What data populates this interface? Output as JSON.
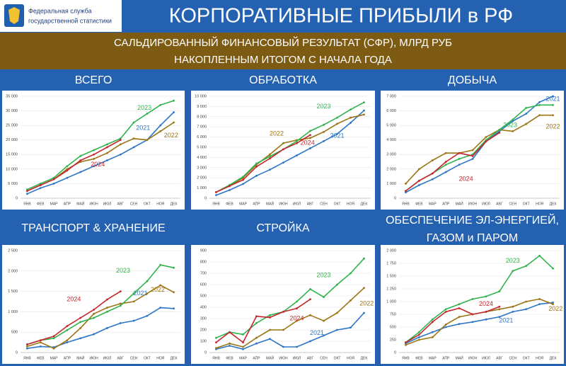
{
  "header": {
    "logo_lines": [
      "Федеральная служба",
      "государственной статистики"
    ],
    "title": "КОРПОРАТИВНЫЕ ПРИБЫЛИ в РФ",
    "subtitle_lines": [
      "САЛЬДИРОВАННЫЙ ФИНАНСОВЫЙ РЕЗУЛЬТАТ (СФР), МЛРД РУБ",
      "НАКОПЛЕННЫМ ИТОГОМ С НАЧАЛА ГОДА"
    ]
  },
  "chart_data": [
    {
      "type": "line",
      "title": "ВСЕГО",
      "grid": true,
      "categories": [
        "ЯНВ",
        "ФЕВ",
        "МАР",
        "АПР",
        "МАЙ",
        "ИЮН",
        "ИЮЛ",
        "АВГ",
        "СЕН",
        "ОКТ",
        "НОЯ",
        "ДЕК"
      ],
      "ylim": [
        0,
        35000
      ],
      "yticks": [
        0,
        {
          "value": 5000,
          "label": "5 000"
        },
        {
          "value": 10000,
          "label": "10 000"
        },
        {
          "value": 15000,
          "label": "15 000"
        },
        {
          "value": 20000,
          "label": "20 000"
        },
        {
          "value": 25000,
          "label": "25 000"
        },
        {
          "value": 30000,
          "label": "30 000"
        },
        {
          "value": 35000,
          "label": "35 000"
        }
      ],
      "series": [
        {
          "name": "2021",
          "color": "#2e75c6",
          "values": [
            1500,
            3500,
            5000,
            7000,
            9000,
            11000,
            13000,
            15000,
            17500,
            20000,
            25000,
            29500
          ]
        },
        {
          "name": "2022",
          "color": "#9c7414",
          "values": [
            2500,
            4500,
            6500,
            10000,
            12500,
            13500,
            15500,
            18500,
            20500,
            20000,
            23000,
            26000
          ]
        },
        {
          "name": "2023",
          "color": "#2fb34c",
          "values": [
            3000,
            5000,
            7000,
            11000,
            14500,
            16500,
            18500,
            20500,
            26000,
            29000,
            32000,
            33500
          ]
        },
        {
          "name": "2024",
          "color": "#c4262e",
          "values": [
            2500,
            4500,
            6500,
            9500,
            13000,
            15000,
            17500,
            20000,
            null,
            null,
            null,
            null
          ]
        }
      ]
    },
    {
      "type": "line",
      "title": "ОБРАБОТКА",
      "grid": true,
      "categories": [
        "ЯНВ",
        "ФЕВ",
        "МАР",
        "АПР",
        "МАЙ",
        "ИЮН",
        "ИЮЛ",
        "АВГ",
        "СЕН",
        "ОКТ",
        "НОЯ",
        "ДЕК"
      ],
      "ylim": [
        0,
        10000
      ],
      "yticks": [
        0,
        {
          "value": 1000,
          "label": "1 000"
        },
        {
          "value": 2000,
          "label": "2 000"
        },
        {
          "value": 3000,
          "label": "3 000"
        },
        {
          "value": 4000,
          "label": "4 000"
        },
        {
          "value": 5000,
          "label": "5 000"
        },
        {
          "value": 6000,
          "label": "6 000"
        },
        {
          "value": 7000,
          "label": "7 000"
        },
        {
          "value": 8000,
          "label": "8 000"
        },
        {
          "value": 9000,
          "label": "9 000"
        },
        {
          "value": 10000,
          "label": "10 000"
        }
      ],
      "series": [
        {
          "name": "2021",
          "color": "#2e75c6",
          "values": [
            300,
            800,
            1400,
            2200,
            2800,
            3500,
            4200,
            4900,
            5600,
            6300,
            7400,
            8600
          ]
        },
        {
          "name": "2022",
          "color": "#9c7414",
          "values": [
            600,
            1200,
            2000,
            3300,
            4300,
            5400,
            5700,
            5900,
            6500,
            7300,
            7900,
            8200
          ]
        },
        {
          "name": "2023",
          "color": "#2fb34c",
          "values": [
            600,
            1300,
            2100,
            3400,
            4100,
            4800,
            5600,
            6600,
            7200,
            7900,
            8700,
            9400
          ]
        },
        {
          "name": "2024",
          "color": "#c4262e",
          "values": [
            600,
            1200,
            1800,
            3100,
            3900,
            4800,
            5400,
            6200,
            null,
            null,
            null,
            null
          ]
        }
      ]
    },
    {
      "type": "line",
      "title": "ДОБЫЧА",
      "grid": true,
      "categories": [
        "ЯНВ",
        "ФЕВ",
        "МАР",
        "АПР",
        "МАЙ",
        "ИЮН",
        "ИЮЛ",
        "АВГ",
        "СЕН",
        "ОКТ",
        "НОЯ",
        "ДЕК"
      ],
      "ylim": [
        0,
        7000
      ],
      "yticks": [
        0,
        {
          "value": 1000,
          "label": "1 000"
        },
        {
          "value": 2000,
          "label": "2 000"
        },
        {
          "value": 3000,
          "label": "3 000"
        },
        {
          "value": 4000,
          "label": "4 000"
        },
        {
          "value": 5000,
          "label": "5 000"
        },
        {
          "value": 6000,
          "label": "6 000"
        },
        {
          "value": 7000,
          "label": "7 000"
        }
      ],
      "series": [
        {
          "name": "2021",
          "color": "#2e75c6",
          "values": [
            400,
            900,
            1300,
            1800,
            2300,
            2700,
            3900,
            4600,
            5300,
            5800,
            6600,
            7000
          ]
        },
        {
          "name": "2022",
          "color": "#9c7414",
          "values": [
            1000,
            2000,
            2600,
            3100,
            3100,
            3300,
            4200,
            4700,
            4600,
            5100,
            5700,
            5700
          ]
        },
        {
          "name": "2023",
          "color": "#2fb34c",
          "values": [
            500,
            1200,
            1700,
            2300,
            2700,
            3000,
            4000,
            4700,
            5400,
            6200,
            6400,
            6400
          ]
        },
        {
          "name": "2024",
          "color": "#c4262e",
          "values": [
            500,
            1200,
            1700,
            2500,
            3100,
            2900,
            3900,
            4500,
            null,
            null,
            null,
            null
          ]
        }
      ]
    },
    {
      "type": "line",
      "title": "ТРАНСПОРТ & ХРАНЕНИЕ",
      "grid": true,
      "categories": [
        "ЯНВ",
        "ФЕВ",
        "МАР",
        "АПР",
        "МАЙ",
        "ИЮН",
        "ИЮЛ",
        "АВГ",
        "СЕН",
        "ОКТ",
        "НОЯ",
        "ДЕК"
      ],
      "ylim": [
        0,
        2500
      ],
      "yticks": [
        0,
        500,
        {
          "value": 1000,
          "label": "1 000"
        },
        {
          "value": 1500,
          "label": "1 500"
        },
        {
          "value": 2000,
          "label": "2 000"
        },
        {
          "value": 2500,
          "label": "2 500"
        }
      ],
      "series": [
        {
          "name": "2021",
          "color": "#2e75c6",
          "values": [
            100,
            150,
            130,
            250,
            350,
            450,
            600,
            720,
            780,
            900,
            1100,
            1080
          ]
        },
        {
          "name": "2022",
          "color": "#9c7414",
          "values": [
            150,
            250,
            100,
            300,
            600,
            950,
            1100,
            1200,
            1250,
            1450,
            1650,
            1480
          ]
        },
        {
          "name": "2023",
          "color": "#2fb34c",
          "values": [
            200,
            300,
            350,
            550,
            750,
            850,
            1000,
            1150,
            1450,
            1750,
            2150,
            2080
          ]
        },
        {
          "name": "2024",
          "color": "#c4262e",
          "values": [
            200,
            300,
            400,
            650,
            850,
            1050,
            1300,
            1500,
            null,
            null,
            null,
            null
          ]
        }
      ]
    },
    {
      "type": "line",
      "title": "СТРОЙКА",
      "grid": true,
      "categories": [
        "ЯНВ",
        "ФЕВ",
        "МАР",
        "АПР",
        "МАЙ",
        "ИЮН",
        "ИЮЛ",
        "АВГ",
        "СЕН",
        "ОКТ",
        "НОЯ",
        "ДЕК"
      ],
      "ylim": [
        0,
        900
      ],
      "yticks": [
        0,
        100,
        200,
        300,
        400,
        500,
        600,
        700,
        800,
        900
      ],
      "series": [
        {
          "name": "2021",
          "color": "#2e75c6",
          "values": [
            30,
            60,
            30,
            80,
            120,
            50,
            50,
            100,
            150,
            200,
            220,
            350
          ]
        },
        {
          "name": "2022",
          "color": "#9c7414",
          "values": [
            40,
            80,
            50,
            130,
            200,
            200,
            280,
            330,
            280,
            350,
            460,
            570
          ]
        },
        {
          "name": "2023",
          "color": "#2fb34c",
          "values": [
            130,
            180,
            160,
            260,
            330,
            360,
            450,
            560,
            490,
            600,
            700,
            830
          ]
        },
        {
          "name": "2024",
          "color": "#c4262e",
          "values": [
            90,
            180,
            90,
            320,
            310,
            360,
            390,
            470,
            null,
            null,
            null,
            null
          ]
        }
      ]
    },
    {
      "type": "line",
      "title": [
        "ОБЕСПЕЧЕНИЕ ЭЛ-ЭНЕРГИЕЙ,",
        "ГАЗОМ и ПАРОМ"
      ],
      "grid": true,
      "categories": [
        "ЯНВ",
        "ФЕВ",
        "МАР",
        "АПР",
        "МАЙ",
        "ИЮН",
        "ИЮЛ",
        "АВГ",
        "СЕН",
        "ОКТ",
        "НОЯ",
        "ДЕК"
      ],
      "ylim": [
        0,
        2000
      ],
      "yticks": [
        0,
        250,
        500,
        750,
        {
          "value": 1000,
          "label": "1 000"
        },
        {
          "value": 1250,
          "label": "1 250"
        },
        {
          "value": 1500,
          "label": "1 500"
        },
        {
          "value": 1750,
          "label": "1 750"
        },
        {
          "value": 2000,
          "label": "2 000"
        }
      ],
      "series": [
        {
          "name": "2021",
          "color": "#2e75c6",
          "values": [
            180,
            300,
            400,
            500,
            560,
            600,
            650,
            700,
            800,
            850,
            950,
            980
          ]
        },
        {
          "name": "2022",
          "color": "#9c7414",
          "values": [
            150,
            250,
            300,
            550,
            700,
            750,
            800,
            850,
            900,
            1000,
            1050,
            950
          ]
        },
        {
          "name": "2023",
          "color": "#2fb34c",
          "values": [
            200,
            400,
            650,
            850,
            950,
            1050,
            1100,
            1200,
            1600,
            1700,
            1900,
            1650
          ]
        },
        {
          "name": "2024",
          "color": "#c4262e",
          "values": [
            200,
            350,
            600,
            800,
            870,
            750,
            800,
            900,
            null,
            null,
            null,
            null
          ]
        }
      ]
    }
  ]
}
